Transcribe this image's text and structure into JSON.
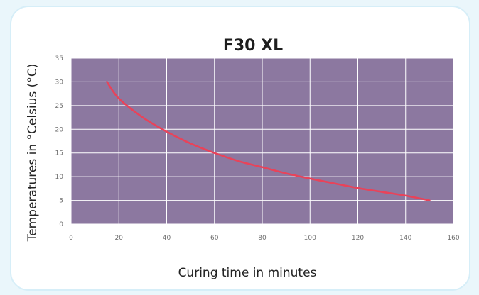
{
  "chart_data": {
    "type": "line",
    "title": "F30 XL",
    "xlabel": "Curing time in minutes",
    "ylabel": "Temperatures in °Celsius (°C)",
    "xlim": [
      0,
      160
    ],
    "ylim": [
      0,
      35
    ],
    "x_ticks": [
      "0",
      "20",
      "40",
      "60",
      "80",
      "100",
      "120",
      "140",
      "160"
    ],
    "y_ticks": [
      "0",
      "5",
      "10",
      "15",
      "20",
      "25",
      "30",
      "35"
    ],
    "grid": true,
    "legend": "none",
    "plot_background": "#8c78a0",
    "grid_color": "#ffffff",
    "series": [
      {
        "color": "#e8435a",
        "x": [
          15,
          20,
          30,
          40,
          50,
          60,
          70,
          80,
          90,
          100,
          110,
          120,
          130,
          140,
          150
        ],
        "y": [
          30,
          26.5,
          22.5,
          19.5,
          17,
          15,
          13.3,
          12,
          10.7,
          9.6,
          8.6,
          7.6,
          6.8,
          6,
          5
        ]
      }
    ]
  }
}
